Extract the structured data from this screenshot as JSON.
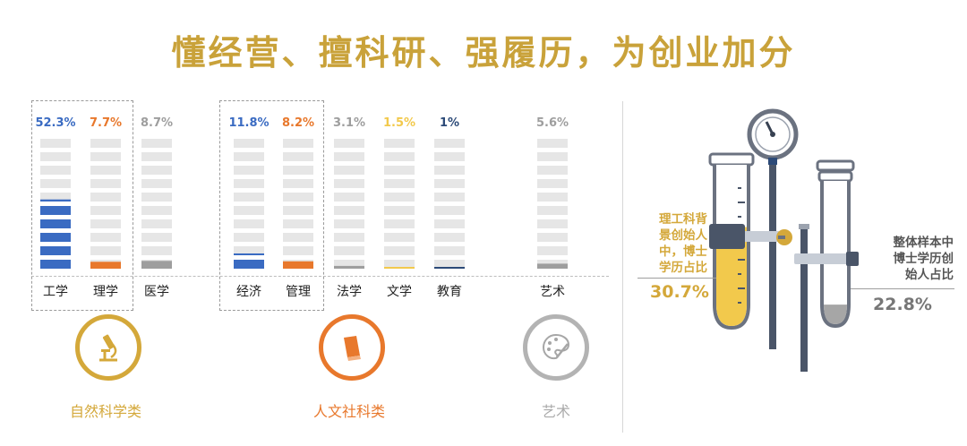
{
  "title": "懂经营、擅科研、强履历，为创业加分",
  "colors": {
    "title": "#C9A23A",
    "blue": "#3A6BC2",
    "orange": "#E8782C",
    "gray": "#9E9E9E",
    "yellow": "#F2C94C",
    "navy": "#2C4A78",
    "track": "#E6E6E6",
    "gold": "#D4A83A",
    "flask_gray": "#A6A6A6"
  },
  "groups": [
    {
      "label": "自然科学类",
      "icon": "microscope-icon",
      "color": "#D4A83A"
    },
    {
      "label": "人文社科类",
      "icon": "book-icon",
      "color": "#E8782C"
    },
    {
      "label": "艺术",
      "icon": "palette-icon",
      "color": "#B3B3B3"
    }
  ],
  "chart_data": {
    "type": "bar",
    "categories": [
      "工学",
      "理学",
      "医学",
      "经济",
      "管理",
      "法学",
      "文学",
      "教育",
      "艺术"
    ],
    "values": [
      52.3,
      7.7,
      8.7,
      11.8,
      8.2,
      3.1,
      1.5,
      1,
      5.6
    ],
    "value_labels": [
      "52.3%",
      "7.7%",
      "8.7%",
      "11.8%",
      "8.2%",
      "3.1%",
      "1.5%",
      "1%",
      "5.6%"
    ],
    "groups": [
      "自然科学类",
      "自然科学类",
      "自然科学类",
      "人文社科类",
      "人文社科类",
      "人文社科类",
      "人文社科类",
      "人文社科类",
      "艺术"
    ],
    "colors": [
      "#3A6BC2",
      "#E8782C",
      "#9E9E9E",
      "#3A6BC2",
      "#E8782C",
      "#9E9E9E",
      "#F2C94C",
      "#2C4A78",
      "#9E9E9E"
    ],
    "ylim": [
      0,
      100
    ]
  },
  "flasks": [
    {
      "label_lines": [
        "理工科背",
        "景创始人",
        "中，博士",
        "学历占比"
      ],
      "value": "30.7%",
      "fraction": 0.307,
      "color": "#D4A83A"
    },
    {
      "label_lines": [
        "整体样本中",
        "博士学历创",
        "始人占比"
      ],
      "value": "22.8%",
      "fraction": 0.228,
      "color": "#A6A6A6"
    }
  ]
}
